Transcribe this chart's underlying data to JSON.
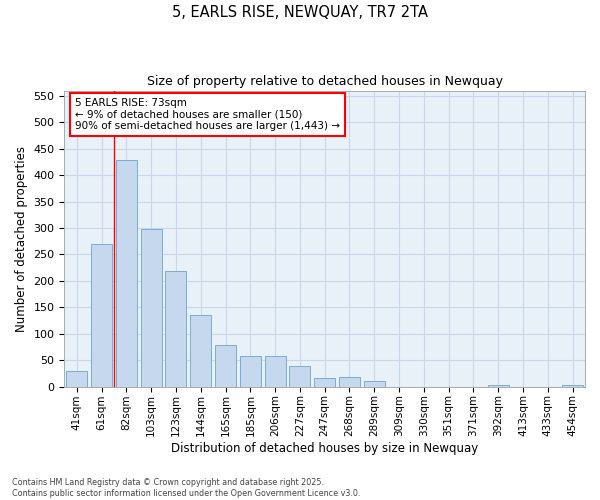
{
  "title": "5, EARLS RISE, NEWQUAY, TR7 2TA",
  "subtitle": "Size of property relative to detached houses in Newquay",
  "xlabel": "Distribution of detached houses by size in Newquay",
  "ylabel": "Number of detached properties",
  "categories": [
    "41sqm",
    "61sqm",
    "82sqm",
    "103sqm",
    "123sqm",
    "144sqm",
    "165sqm",
    "185sqm",
    "206sqm",
    "227sqm",
    "247sqm",
    "268sqm",
    "289sqm",
    "309sqm",
    "330sqm",
    "351sqm",
    "371sqm",
    "392sqm",
    "413sqm",
    "433sqm",
    "454sqm"
  ],
  "values": [
    30,
    270,
    428,
    298,
    218,
    135,
    78,
    58,
    58,
    40,
    16,
    18,
    10,
    0,
    0,
    0,
    0,
    4,
    0,
    0,
    3
  ],
  "bar_color": "#c5d8ed",
  "bar_edge_color": "#7aadd4",
  "grid_color": "#c8d8ea",
  "background_color": "#e8f0f8",
  "red_line_x": 1.5,
  "annotation_title": "5 EARLS RISE: 73sqm",
  "annotation_line1": "← 9% of detached houses are smaller (150)",
  "annotation_line2": "90% of semi-detached houses are larger (1,443) →",
  "ylim": [
    0,
    560
  ],
  "yticks": [
    0,
    50,
    100,
    150,
    200,
    250,
    300,
    350,
    400,
    450,
    500,
    550
  ],
  "footer1": "Contains HM Land Registry data © Crown copyright and database right 2025.",
  "footer2": "Contains public sector information licensed under the Open Government Licence v3.0."
}
